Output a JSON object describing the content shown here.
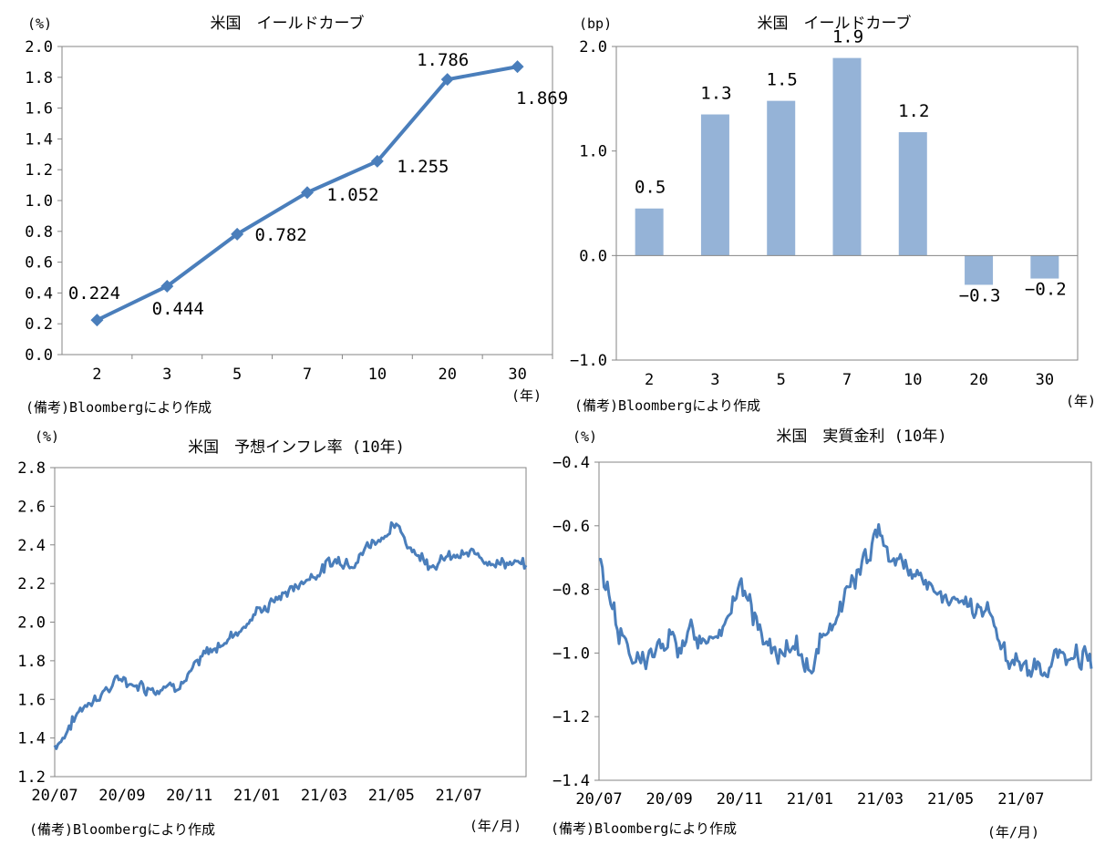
{
  "chart_data": [
    {
      "type": "line",
      "title": "米国　イールドカーブ",
      "unit_label": "(%)",
      "xunit_label": "(年)",
      "note": "(備考)Bloombergにより作成",
      "categories": [
        "2",
        "3",
        "5",
        "7",
        "10",
        "20",
        "30"
      ],
      "values": [
        0.224,
        0.444,
        0.782,
        1.052,
        1.255,
        1.786,
        1.869
      ],
      "data_labels": [
        "0.224",
        "0.444",
        "0.782",
        "1.052",
        "1.255",
        "1.786",
        "1.869"
      ],
      "ylim": [
        0.0,
        2.0
      ],
      "yticks": [
        "0.0",
        "0.2",
        "0.4",
        "0.6",
        "0.8",
        "1.0",
        "1.2",
        "1.4",
        "1.6",
        "1.8",
        "2.0"
      ],
      "color": "#4a7ebb",
      "marker": "diamond",
      "grid": false
    },
    {
      "type": "bar",
      "title": "米国　イールドカーブ",
      "unit_label": "(bp)",
      "xunit_label": "(年)",
      "note": "(備考)Bloombergにより作成",
      "categories": [
        "2",
        "3",
        "5",
        "7",
        "10",
        "20",
        "30"
      ],
      "values": [
        0.45,
        1.35,
        1.48,
        1.89,
        1.18,
        -0.28,
        -0.22
      ],
      "data_labels": [
        "0.5",
        "1.3",
        "1.5",
        "1.9",
        "1.2",
        "−0.3",
        "−0.2"
      ],
      "ylim": [
        -1.0,
        2.0
      ],
      "yticks": [
        "−1.0",
        "0.0",
        "1.0",
        "2.0"
      ],
      "color": "#95b3d7",
      "grid": false
    },
    {
      "type": "line",
      "title": "米国　予想インフレ率 (10年)",
      "unit_label": "(%)",
      "xunit_label": "(年/月)",
      "note": "(備考)Bloombergにより作成",
      "x_ticks": [
        "20/07",
        "20/09",
        "20/11",
        "21/01",
        "21/03",
        "21/05",
        "21/07"
      ],
      "ylim": [
        1.2,
        2.8
      ],
      "yticks": [
        "1.2",
        "1.4",
        "1.6",
        "1.8",
        "2.0",
        "2.2",
        "2.4",
        "2.6",
        "2.8"
      ],
      "color": "#4a7ebb",
      "grid": false,
      "monthly_points": [
        {
          "x": "20/07",
          "y": 1.36
        },
        {
          "x": "20/08",
          "y": 1.6
        },
        {
          "x": "20/09",
          "y": 1.7
        },
        {
          "x": "20/10",
          "y": 1.67
        },
        {
          "x": "20/11",
          "y": 1.73
        },
        {
          "x": "20/12",
          "y": 1.9
        },
        {
          "x": "21/01",
          "y": 2.05
        },
        {
          "x": "21/02",
          "y": 2.17
        },
        {
          "x": "21/03",
          "y": 2.29
        },
        {
          "x": "21/04",
          "y": 2.36
        },
        {
          "x": "21/05",
          "y": 2.5
        },
        {
          "x": "21/06",
          "y": 2.33
        },
        {
          "x": "21/07",
          "y": 2.33
        },
        {
          "x": "21/08",
          "y": 2.34
        },
        {
          "x": "21/09",
          "y": 2.28
        }
      ]
    },
    {
      "type": "line",
      "title": "米国　実質金利 (10年)",
      "unit_label": "(%)",
      "xunit_label": "(年/月)",
      "note": "(備考)Bloombergにより作成",
      "x_ticks": [
        "20/07",
        "20/09",
        "20/11",
        "21/01",
        "21/03",
        "21/05",
        "21/07"
      ],
      "ylim": [
        -1.4,
        -0.4
      ],
      "yticks": [
        "−1.4",
        "−1.2",
        "−1.0",
        "−0.8",
        "−0.6",
        "−0.4"
      ],
      "color": "#4a7ebb",
      "grid": false,
      "monthly_points": [
        {
          "x": "20/07",
          "y": -0.72
        },
        {
          "x": "20/08",
          "y": -1.04
        },
        {
          "x": "20/09",
          "y": -0.98
        },
        {
          "x": "20/10",
          "y": -0.94
        },
        {
          "x": "20/11",
          "y": -0.82
        },
        {
          "x": "20/12",
          "y": -1.0
        },
        {
          "x": "21/01",
          "y": -1.04
        },
        {
          "x": "21/02",
          "y": -0.8
        },
        {
          "x": "21/03",
          "y": -0.64
        },
        {
          "x": "21/04",
          "y": -0.74
        },
        {
          "x": "21/05",
          "y": -0.86
        },
        {
          "x": "21/06",
          "y": -0.88
        },
        {
          "x": "21/07",
          "y": -1.08
        },
        {
          "x": "21/08",
          "y": -1.02
        },
        {
          "x": "21/09",
          "y": -1.01
        }
      ]
    }
  ]
}
